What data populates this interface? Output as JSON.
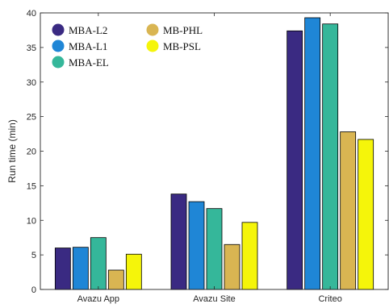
{
  "chart_data": {
    "type": "bar",
    "title": "",
    "xlabel": "",
    "ylabel": "Run time (min)",
    "ylim": [
      0,
      40
    ],
    "yticks": [
      0,
      5,
      10,
      15,
      20,
      25,
      30,
      35,
      40
    ],
    "categories": [
      "Avazu App",
      "Avazu Site",
      "Criteo"
    ],
    "grid": false,
    "legend_position": "top-left",
    "series": [
      {
        "name": "MBA-L2",
        "color": "#3a2a82",
        "values": [
          6.0,
          13.8,
          37.4
        ]
      },
      {
        "name": "MBA-L1",
        "color": "#1f86d6",
        "values": [
          6.1,
          12.7,
          39.3
        ]
      },
      {
        "name": "MBA-EL",
        "color": "#35b79a",
        "values": [
          7.5,
          11.7,
          38.4
        ]
      },
      {
        "name": "MB-PHL",
        "color": "#d9b552",
        "values": [
          2.8,
          6.5,
          22.8
        ]
      },
      {
        "name": "MB-PSL",
        "color": "#f5f50a",
        "values": [
          5.1,
          9.7,
          21.7
        ]
      }
    ]
  }
}
